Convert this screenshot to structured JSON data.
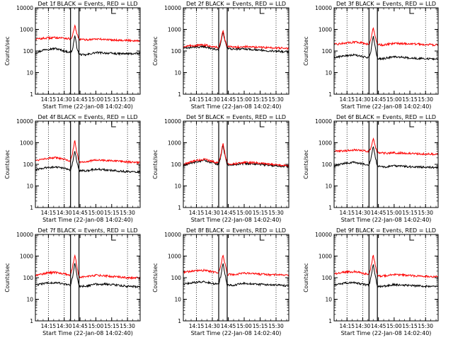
{
  "figure": {
    "colors": {
      "events": "#000000",
      "lld": "#ff0000",
      "axes": "#000000",
      "background": "#ffffff"
    }
  },
  "chart_data": [
    {
      "type": "line",
      "title": "Det 1f BLACK = Events, RED = LLD",
      "xlabel": "Start Time (22-Jan-08 14:02:40)",
      "ylabel": "Counts/sec",
      "yscale": "log",
      "ylim": [
        1,
        10000
      ],
      "xlim": [
        "14:02:40",
        "15:42:00"
      ],
      "x_ticks": [
        "14:15",
        "14:30",
        "14:45",
        "15:00",
        "15:15",
        "15:30"
      ],
      "y_ticks": [
        "1",
        "10",
        "100",
        "1000",
        "10000"
      ],
      "dotted_lines_at": [
        "14:15",
        "14:30",
        "15:30"
      ],
      "interval_markers": [
        "14:36",
        "14:44"
      ],
      "bracket_at": "15:15",
      "series": [
        {
          "name": "Events",
          "color": "#000000",
          "x": [
            "14:02:40",
            "14:12",
            "14:22",
            "14:30",
            "14:36",
            "14:38",
            "14:40",
            "14:42",
            "14:44",
            "14:50",
            "15:00",
            "15:10",
            "15:20",
            "15:30",
            "15:42"
          ],
          "y": [
            80,
            120,
            130,
            100,
            85,
            120,
            550,
            150,
            70,
            65,
            85,
            80,
            75,
            75,
            75
          ]
        },
        {
          "name": "LLD",
          "color": "#ff0000",
          "x": [
            "14:02:40",
            "14:12",
            "14:22",
            "14:30",
            "14:36",
            "14:38",
            "14:40",
            "14:42",
            "14:44",
            "14:50",
            "15:00",
            "15:10",
            "15:20",
            "15:30",
            "15:42"
          ],
          "y": [
            360,
            390,
            420,
            400,
            360,
            500,
            1600,
            600,
            350,
            330,
            360,
            340,
            320,
            310,
            300
          ]
        }
      ]
    },
    {
      "type": "line",
      "title": "Det 2f BLACK = Events, RED = LLD",
      "xlabel": "Start Time (22-Jan-08 14:02:40)",
      "ylabel": "Counts/sec",
      "yscale": "log",
      "ylim": [
        1,
        10000
      ],
      "xlim": [
        "14:02:40",
        "15:42:00"
      ],
      "x_ticks": [
        "14:15",
        "14:30",
        "14:45",
        "15:00",
        "15:15",
        "15:30"
      ],
      "y_ticks": [
        "1",
        "10",
        "100",
        "1000",
        "10000"
      ],
      "dotted_lines_at": [
        "14:15",
        "14:30",
        "15:30"
      ],
      "interval_markers": [
        "14:36",
        "14:44"
      ],
      "bracket_at": "15:15",
      "series": [
        {
          "name": "Events",
          "color": "#000000",
          "x": [
            "14:02:40",
            "14:12",
            "14:22",
            "14:30",
            "14:36",
            "14:38",
            "14:40",
            "14:42",
            "14:44",
            "14:50",
            "15:00",
            "15:10",
            "15:20",
            "15:30",
            "15:42"
          ],
          "y": [
            130,
            150,
            160,
            130,
            110,
            250,
            750,
            280,
            130,
            120,
            125,
            115,
            105,
            100,
            90
          ]
        },
        {
          "name": "LLD",
          "color": "#ff0000",
          "x": [
            "14:02:40",
            "14:12",
            "14:22",
            "14:30",
            "14:36",
            "14:38",
            "14:40",
            "14:42",
            "14:44",
            "14:50",
            "15:00",
            "15:10",
            "15:20",
            "15:30",
            "15:42"
          ],
          "y": [
            160,
            180,
            190,
            165,
            140,
            300,
            900,
            320,
            160,
            150,
            160,
            150,
            145,
            140,
            130
          ]
        }
      ]
    },
    {
      "type": "line",
      "title": "Det 3f BLACK = Events, RED = LLD",
      "xlabel": "Start Time (22-Jan-08 14:02:40)",
      "ylabel": "Counts/sec",
      "yscale": "log",
      "ylim": [
        1,
        10000
      ],
      "xlim": [
        "14:02:40",
        "15:42:00"
      ],
      "x_ticks": [
        "14:15",
        "14:30",
        "14:45",
        "15:00",
        "15:15",
        "15:30"
      ],
      "y_ticks": [
        "1",
        "10",
        "100",
        "1000",
        "10000"
      ],
      "dotted_lines_at": [
        "14:15",
        "14:30",
        "15:30"
      ],
      "interval_markers": [
        "14:36",
        "14:44"
      ],
      "bracket_at": "15:15",
      "series": [
        {
          "name": "Events",
          "color": "#000000",
          "x": [
            "14:02:40",
            "14:12",
            "14:22",
            "14:30",
            "14:36",
            "14:38",
            "14:40",
            "14:42",
            "14:44",
            "14:50",
            "15:00",
            "15:10",
            "15:20",
            "15:30",
            "15:42"
          ],
          "y": [
            50,
            60,
            65,
            55,
            48,
            110,
            550,
            140,
            45,
            45,
            55,
            50,
            45,
            45,
            40
          ]
        },
        {
          "name": "LLD",
          "color": "#ff0000",
          "x": [
            "14:02:40",
            "14:12",
            "14:22",
            "14:30",
            "14:36",
            "14:38",
            "14:40",
            "14:42",
            "14:44",
            "14:50",
            "15:00",
            "15:10",
            "15:20",
            "15:30",
            "15:42"
          ],
          "y": [
            200,
            230,
            260,
            240,
            200,
            400,
            1200,
            450,
            200,
            190,
            230,
            220,
            210,
            200,
            190
          ]
        }
      ]
    },
    {
      "type": "line",
      "title": "Det 4f BLACK = Events, RED = LLD",
      "xlabel": "Start Time (22-Jan-08 14:02:40)",
      "ylabel": "Counts/sec",
      "yscale": "log",
      "ylim": [
        1,
        10000
      ],
      "xlim": [
        "14:02:40",
        "15:42:00"
      ],
      "x_ticks": [
        "14:15",
        "14:30",
        "14:45",
        "15:00",
        "15:15",
        "15:30"
      ],
      "y_ticks": [
        "1",
        "10",
        "100",
        "1000",
        "10000"
      ],
      "dotted_lines_at": [
        "14:15",
        "14:30",
        "15:30"
      ],
      "interval_markers": [
        "14:36",
        "14:44"
      ],
      "bracket_at": "15:15",
      "series": [
        {
          "name": "Events",
          "color": "#000000",
          "x": [
            "14:02:40",
            "14:12",
            "14:22",
            "14:30",
            "14:36",
            "14:38",
            "14:40",
            "14:42",
            "14:44",
            "14:50",
            "15:00",
            "15:10",
            "15:20",
            "15:30",
            "15:42"
          ],
          "y": [
            55,
            70,
            75,
            65,
            55,
            120,
            450,
            130,
            50,
            50,
            60,
            55,
            50,
            45,
            45
          ]
        },
        {
          "name": "LLD",
          "color": "#ff0000",
          "x": [
            "14:02:40",
            "14:12",
            "14:22",
            "14:30",
            "14:36",
            "14:38",
            "14:40",
            "14:42",
            "14:44",
            "14:50",
            "15:00",
            "15:10",
            "15:20",
            "15:30",
            "15:42"
          ],
          "y": [
            150,
            190,
            200,
            170,
            140,
            350,
            1300,
            380,
            130,
            130,
            160,
            150,
            140,
            130,
            120
          ]
        }
      ]
    },
    {
      "type": "line",
      "title": "Det 5f BLACK = Events, RED = LLD",
      "xlabel": "Start Time (22-Jan-08 14:02:40)",
      "ylabel": "Counts/sec",
      "yscale": "log",
      "ylim": [
        1,
        10000
      ],
      "xlim": [
        "14:02:40",
        "15:42:00"
      ],
      "x_ticks": [
        "14:15",
        "14:30",
        "14:45",
        "15:00",
        "15:15",
        "15:30"
      ],
      "y_ticks": [
        "1",
        "10",
        "100",
        "1000",
        "10000"
      ],
      "dotted_lines_at": [
        "14:15",
        "14:30",
        "15:30"
      ],
      "interval_markers": [
        "14:36",
        "14:44"
      ],
      "bracket_at": "15:15",
      "series": [
        {
          "name": "Events",
          "color": "#000000",
          "x": [
            "14:02:40",
            "14:12",
            "14:22",
            "14:30",
            "14:36",
            "14:38",
            "14:40",
            "14:42",
            "14:44",
            "14:50",
            "15:00",
            "15:10",
            "15:20",
            "15:30",
            "15:42"
          ],
          "y": [
            85,
            120,
            150,
            120,
            100,
            230,
            850,
            250,
            95,
            95,
            110,
            105,
            95,
            85,
            80
          ]
        },
        {
          "name": "LLD",
          "color": "#ff0000",
          "x": [
            "14:02:40",
            "14:12",
            "14:22",
            "14:30",
            "14:36",
            "14:38",
            "14:40",
            "14:42",
            "14:44",
            "14:50",
            "15:00",
            "15:10",
            "15:20",
            "15:30",
            "15:42"
          ],
          "y": [
            95,
            140,
            170,
            140,
            115,
            270,
            1000,
            290,
            105,
            105,
            125,
            120,
            105,
            95,
            85
          ]
        }
      ]
    },
    {
      "type": "line",
      "title": "Det 6f BLACK = Events, RED = LLD",
      "xlabel": "Start Time (22-Jan-08 14:02:40)",
      "ylabel": "Counts/sec",
      "yscale": "log",
      "ylim": [
        1,
        10000
      ],
      "xlim": [
        "14:02:40",
        "15:42:00"
      ],
      "x_ticks": [
        "14:15",
        "14:30",
        "14:45",
        "15:00",
        "15:15",
        "15:30"
      ],
      "y_ticks": [
        "1",
        "10",
        "100",
        "1000",
        "10000"
      ],
      "dotted_lines_at": [
        "14:15",
        "14:30",
        "15:30"
      ],
      "interval_markers": [
        "14:36",
        "14:44"
      ],
      "bracket_at": "15:15",
      "series": [
        {
          "name": "Events",
          "color": "#000000",
          "x": [
            "14:02:40",
            "14:12",
            "14:22",
            "14:30",
            "14:36",
            "14:38",
            "14:40",
            "14:42",
            "14:44",
            "14:50",
            "15:00",
            "15:10",
            "15:20",
            "15:30",
            "15:42"
          ],
          "y": [
            85,
            110,
            125,
            105,
            90,
            200,
            700,
            220,
            80,
            75,
            85,
            80,
            75,
            75,
            70
          ]
        },
        {
          "name": "LLD",
          "color": "#ff0000",
          "x": [
            "14:02:40",
            "14:12",
            "14:22",
            "14:30",
            "14:36",
            "14:38",
            "14:40",
            "14:42",
            "14:44",
            "14:50",
            "15:00",
            "15:10",
            "15:20",
            "15:30",
            "15:42"
          ],
          "y": [
            400,
            420,
            460,
            430,
            380,
            600,
            1600,
            650,
            350,
            330,
            340,
            330,
            310,
            300,
            290
          ]
        }
      ]
    },
    {
      "type": "line",
      "title": "Det 7f BLACK = Events, RED = LLD",
      "xlabel": "Start Time (22-Jan-08 14:02:40)",
      "ylabel": "Counts/sec",
      "yscale": "log",
      "ylim": [
        1,
        10000
      ],
      "xlim": [
        "14:02:40",
        "15:42:00"
      ],
      "x_ticks": [
        "14:15",
        "14:30",
        "14:45",
        "15:00",
        "15:15",
        "15:30"
      ],
      "y_ticks": [
        "1",
        "10",
        "100",
        "1000",
        "10000"
      ],
      "dotted_lines_at": [
        "14:15",
        "14:30",
        "15:30"
      ],
      "interval_markers": [
        "14:36",
        "14:44"
      ],
      "bracket_at": "15:15",
      "series": [
        {
          "name": "Events",
          "color": "#000000",
          "x": [
            "14:02:40",
            "14:12",
            "14:22",
            "14:30",
            "14:36",
            "14:38",
            "14:40",
            "14:42",
            "14:44",
            "14:50",
            "15:00",
            "15:10",
            "15:20",
            "15:30",
            "15:42"
          ],
          "y": [
            45,
            55,
            60,
            50,
            45,
            110,
            500,
            130,
            40,
            40,
            50,
            50,
            45,
            40,
            38
          ]
        },
        {
          "name": "LLD",
          "color": "#ff0000",
          "x": [
            "14:02:40",
            "14:12",
            "14:22",
            "14:30",
            "14:36",
            "14:38",
            "14:40",
            "14:42",
            "14:44",
            "14:50",
            "15:00",
            "15:10",
            "15:20",
            "15:30",
            "15:42"
          ],
          "y": [
            130,
            160,
            175,
            150,
            130,
            330,
            1100,
            360,
            110,
            110,
            130,
            120,
            110,
            100,
            95
          ]
        }
      ]
    },
    {
      "type": "line",
      "title": "Det 8f BLACK = Events, RED = LLD",
      "xlabel": "Start Time (22-Jan-08 14:02:40)",
      "ylabel": "Counts/sec",
      "yscale": "log",
      "ylim": [
        1,
        10000
      ],
      "xlim": [
        "14:02:40",
        "15:42:00"
      ],
      "x_ticks": [
        "14:15",
        "14:30",
        "14:45",
        "15:00",
        "15:15",
        "15:30"
      ],
      "y_ticks": [
        "1",
        "10",
        "100",
        "1000",
        "10000"
      ],
      "dotted_lines_at": [
        "14:15",
        "14:30",
        "15:30"
      ],
      "interval_markers": [
        "14:36",
        "14:44"
      ],
      "bracket_at": "15:15",
      "series": [
        {
          "name": "Events",
          "color": "#000000",
          "x": [
            "14:02:40",
            "14:12",
            "14:22",
            "14:30",
            "14:36",
            "14:38",
            "14:40",
            "14:42",
            "14:44",
            "14:50",
            "15:00",
            "15:10",
            "15:20",
            "15:30",
            "15:42"
          ],
          "y": [
            50,
            60,
            65,
            55,
            50,
            120,
            500,
            140,
            45,
            45,
            55,
            50,
            48,
            45,
            42
          ]
        },
        {
          "name": "LLD",
          "color": "#ff0000",
          "x": [
            "14:02:40",
            "14:12",
            "14:22",
            "14:30",
            "14:36",
            "14:38",
            "14:40",
            "14:42",
            "14:44",
            "14:50",
            "15:00",
            "15:10",
            "15:20",
            "15:30",
            "15:42"
          ],
          "y": [
            180,
            200,
            220,
            190,
            170,
            400,
            1100,
            420,
            140,
            140,
            160,
            150,
            140,
            135,
            130
          ]
        }
      ]
    },
    {
      "type": "line",
      "title": "Det 9f BLACK = Events, RED = LLD",
      "xlabel": "Start Time (22-Jan-08 14:02:40)",
      "ylabel": "Counts/sec",
      "yscale": "log",
      "ylim": [
        1,
        10000
      ],
      "xlim": [
        "14:02:40",
        "15:42:00"
      ],
      "x_ticks": [
        "14:15",
        "14:30",
        "14:45",
        "15:00",
        "15:15",
        "15:30"
      ],
      "y_ticks": [
        "1",
        "10",
        "100",
        "1000",
        "10000"
      ],
      "dotted_lines_at": [
        "14:15",
        "14:30",
        "15:30"
      ],
      "interval_markers": [
        "14:36",
        "14:44"
      ],
      "bracket_at": "15:15",
      "series": [
        {
          "name": "Events",
          "color": "#000000",
          "x": [
            "14:02:40",
            "14:12",
            "14:22",
            "14:30",
            "14:36",
            "14:38",
            "14:40",
            "14:42",
            "14:44",
            "14:50",
            "15:00",
            "15:10",
            "15:20",
            "15:30",
            "15:42"
          ],
          "y": [
            45,
            55,
            60,
            50,
            45,
            110,
            450,
            120,
            40,
            40,
            48,
            45,
            42,
            40,
            38
          ]
        },
        {
          "name": "LLD",
          "color": "#ff0000",
          "x": [
            "14:02:40",
            "14:12",
            "14:22",
            "14:30",
            "14:36",
            "14:38",
            "14:40",
            "14:42",
            "14:44",
            "14:50",
            "15:00",
            "15:10",
            "15:20",
            "15:30",
            "15:42"
          ],
          "y": [
            150,
            180,
            190,
            160,
            140,
            350,
            1100,
            380,
            120,
            120,
            140,
            130,
            120,
            115,
            110
          ]
        }
      ]
    }
  ]
}
